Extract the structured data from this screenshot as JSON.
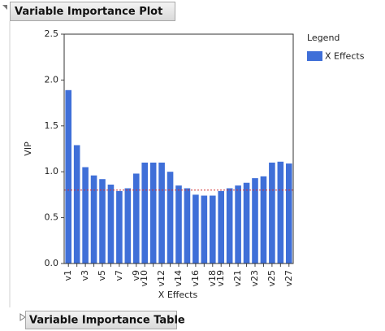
{
  "outline": {
    "title": "Variable Importance Plot",
    "collapsed_title": "Variable Importance Table"
  },
  "chart_data": {
    "type": "bar",
    "y_label": "VIP",
    "x_label": "X Effects",
    "legend_title": "Legend",
    "categories": [
      "v1",
      null,
      "v3",
      null,
      "v5",
      null,
      "v7",
      null,
      "v9",
      "v10",
      null,
      "v12",
      null,
      "v14",
      null,
      "v16",
      null,
      "v18",
      "v19",
      null,
      "v21",
      null,
      "v23",
      null,
      "v25",
      null,
      "v27"
    ],
    "series": [
      {
        "name": "X Effects",
        "color": "#3f6fd8",
        "values": [
          1.89,
          1.29,
          1.05,
          0.96,
          0.92,
          0.86,
          0.79,
          0.82,
          0.98,
          1.1,
          1.1,
          1.1,
          1.0,
          0.85,
          0.82,
          0.75,
          0.74,
          0.74,
          0.79,
          0.82,
          0.85,
          0.88,
          0.93,
          0.95,
          1.1,
          1.11,
          1.09
        ]
      }
    ],
    "reference_line": 0.8,
    "ylim": [
      0,
      2.5
    ],
    "yticks": [
      {
        "value": 0,
        "label": "0.0"
      },
      0.5,
      {
        "value": 1,
        "label": "1.0"
      },
      1.5,
      {
        "value": 2,
        "label": "2.0"
      },
      2.5
    ]
  }
}
